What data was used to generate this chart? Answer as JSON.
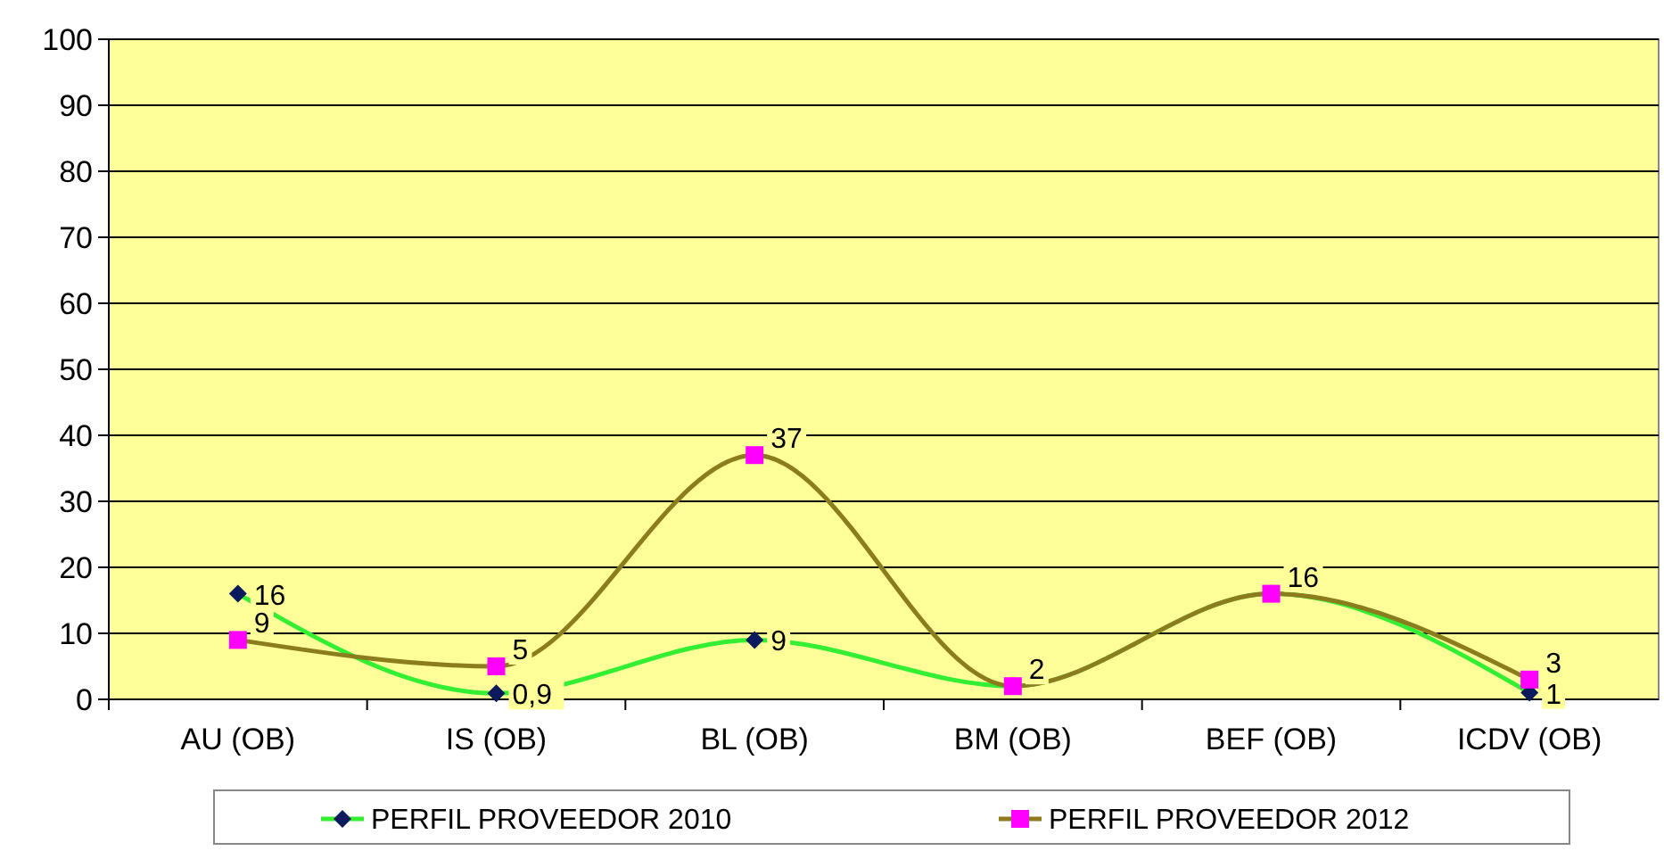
{
  "chart_data": {
    "type": "line",
    "categories": [
      "AU (OB)",
      "IS (OB)",
      "BL (OB)",
      "BM (OB)",
      "BEF (OB)",
      "ICDV (OB)"
    ],
    "series": [
      {
        "name": "PERFIL PROVEEDOR 2010",
        "color": "#33ee33",
        "colors": [
          "#0a1a5c",
          "#0a1a5c",
          "#0a1a5c",
          "#0a1a5c",
          "#0a1a5c",
          "#0a1a5c"
        ],
        "marker": "diamond",
        "values": [
          16,
          0.9,
          9,
          2,
          16,
          1
        ],
        "value_labels": [
          "16",
          "0,9",
          "9",
          null,
          null,
          "1"
        ]
      },
      {
        "name": "PERFIL PROVEEDOR 2012",
        "color": "#8b7d1e",
        "colors": [
          "#ff00ff",
          "#ff00ff",
          "#ff00ff",
          "#ff00ff",
          "#ff00ff",
          "#ff00ff"
        ],
        "marker": "square",
        "values": [
          9,
          5,
          37,
          2,
          16,
          3
        ],
        "value_labels": [
          "9",
          "5",
          "37",
          "2",
          "16",
          "3"
        ]
      }
    ],
    "ylim": [
      0,
      100
    ],
    "yticks": [
      0,
      10,
      20,
      30,
      40,
      50,
      60,
      70,
      80,
      90,
      100
    ],
    "grid": "y",
    "legend": "bottom"
  }
}
